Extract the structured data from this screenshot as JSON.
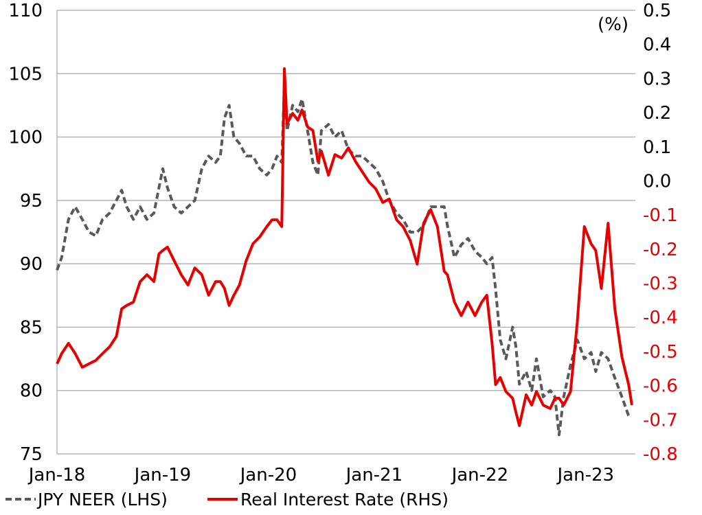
{
  "chart_data": {
    "type": "line",
    "title": "",
    "unit_label": "(%)",
    "grid": true,
    "legend_position": "bottom",
    "x_tick_labels": [
      "Jan-18",
      "Jan-19",
      "Jan-20",
      "Jan-21",
      "Jan-22",
      "Jan-23"
    ],
    "x_tick_dates": [
      "2018-01-01",
      "2019-01-01",
      "2020-01-01",
      "2021-01-01",
      "2022-01-01",
      "2023-01-01"
    ],
    "y_left": {
      "lim": [
        75,
        110
      ],
      "ticks": [
        110,
        105,
        100,
        95,
        90,
        85,
        80,
        75
      ]
    },
    "y_right": {
      "lim": [
        -0.8,
        0.5
      ],
      "ticks": [
        "0.5",
        "0.4",
        "0.3",
        "0.2",
        "0.1",
        "0.0",
        "-0.1",
        "-0.2",
        "-0.3",
        "-0.4",
        "-0.5",
        "-0.6",
        "-0.7",
        "-0.8"
      ]
    },
    "colors": {
      "neer": "#595959",
      "rate": "#e60000",
      "negative_tick": "#e60000",
      "grid": "#a6a6a6"
    },
    "x": [
      "2018-01-01",
      "2018-01-17",
      "2018-02-10",
      "2018-03-03",
      "2018-03-27",
      "2018-04-20",
      "2018-05-13",
      "2018-06-06",
      "2018-06-30",
      "2018-07-23",
      "2018-08-11",
      "2018-08-28",
      "2018-09-21",
      "2018-10-14",
      "2018-11-07",
      "2018-12-01",
      "2018-12-18",
      "2019-01-01",
      "2019-01-17",
      "2019-02-10",
      "2019-03-04",
      "2019-03-27",
      "2019-04-20",
      "2019-05-14",
      "2019-06-07",
      "2019-07-01",
      "2019-07-17",
      "2019-07-31",
      "2019-08-17",
      "2019-09-03",
      "2019-09-22",
      "2019-10-15",
      "2019-11-08",
      "2019-12-01",
      "2019-12-25",
      "2020-01-13",
      "2020-01-30",
      "2020-02-16",
      "2020-02-25",
      "2020-03-04",
      "2020-03-23",
      "2020-04-11",
      "2020-04-25",
      "2020-05-14",
      "2020-06-02",
      "2020-06-19",
      "2020-07-01",
      "2020-07-25",
      "2020-08-17",
      "2020-09-10",
      "2020-10-03",
      "2020-10-27",
      "2020-11-20",
      "2020-12-13",
      "2021-01-06",
      "2021-01-30",
      "2021-02-22",
      "2021-03-17",
      "2021-04-09",
      "2021-05-03",
      "2021-05-27",
      "2021-06-19",
      "2021-07-13",
      "2021-08-06",
      "2021-08-29",
      "2021-09-10",
      "2021-10-04",
      "2021-10-27",
      "2021-11-20",
      "2021-12-14",
      "2022-01-07",
      "2022-01-24",
      "2022-02-12",
      "2022-02-24",
      "2022-03-10",
      "2022-03-29",
      "2022-04-22",
      "2022-05-03",
      "2022-05-15",
      "2022-06-08",
      "2022-06-27",
      "2022-07-13",
      "2022-08-06",
      "2022-08-30",
      "2022-09-16",
      "2022-09-30",
      "2022-10-16",
      "2022-11-09",
      "2022-12-02",
      "2022-12-26",
      "2023-01-19",
      "2023-02-05",
      "2023-02-24",
      "2023-03-17",
      "2023-04-10",
      "2023-05-04",
      "2023-05-27",
      "2023-06-08"
    ],
    "series": [
      {
        "name": "JPY NEER (LHS)",
        "axis": "left",
        "style": "dashed",
        "values": [
          89.5,
          90.5,
          93.5,
          94.5,
          93.5,
          92.5,
          92.2,
          93.5,
          94,
          95,
          95.8,
          94.5,
          93.5,
          94.5,
          93.5,
          94,
          96,
          97.5,
          96,
          94.5,
          94,
          94.5,
          95,
          97.5,
          98.5,
          98,
          98.5,
          101.5,
          102.5,
          100,
          99.5,
          98.5,
          98.5,
          97.5,
          97,
          97.5,
          98.5,
          98,
          104,
          100.5,
          102.5,
          102,
          103,
          100.5,
          98,
          97,
          100.5,
          101,
          100,
          100.5,
          99,
          98.5,
          98.5,
          98,
          97.5,
          96.5,
          95,
          94,
          93.5,
          92.5,
          92.5,
          93,
          94.5,
          94.5,
          94.5,
          93,
          90.5,
          91.5,
          92,
          91,
          90.5,
          90,
          90.5,
          88,
          84,
          82.5,
          85,
          83.5,
          80.5,
          81.5,
          80,
          82.5,
          79.5,
          80,
          79.5,
          76.5,
          79.5,
          82,
          84,
          82.5,
          83,
          81.5,
          83,
          82.5,
          81,
          79.5,
          78,
          78
        ]
      },
      {
        "name": "Real Interest Rate (RHS)",
        "axis": "right",
        "style": "solid",
        "values": [
          -0.536,
          -0.506,
          -0.476,
          -0.506,
          -0.546,
          -0.536,
          -0.526,
          -0.506,
          -0.486,
          -0.456,
          -0.375,
          -0.365,
          -0.355,
          -0.295,
          -0.275,
          -0.295,
          -0.214,
          -0.204,
          -0.194,
          -0.234,
          -0.275,
          -0.305,
          -0.255,
          -0.275,
          -0.335,
          -0.295,
          -0.295,
          -0.315,
          -0.365,
          -0.335,
          -0.305,
          -0.234,
          -0.184,
          -0.164,
          -0.134,
          -0.114,
          -0.114,
          -0.134,
          0.329,
          0.168,
          0.198,
          0.178,
          0.208,
          0.158,
          0.148,
          0.057,
          0.087,
          0.017,
          0.077,
          0.067,
          0.097,
          0.057,
          0.027,
          -0.003,
          -0.023,
          -0.063,
          -0.053,
          -0.114,
          -0.134,
          -0.174,
          -0.244,
          -0.124,
          -0.084,
          -0.134,
          -0.265,
          -0.275,
          -0.355,
          -0.395,
          -0.355,
          -0.395,
          -0.355,
          -0.335,
          -0.476,
          -0.597,
          -0.576,
          -0.617,
          -0.637,
          -0.677,
          -0.717,
          -0.627,
          -0.657,
          -0.617,
          -0.657,
          -0.667,
          -0.637,
          -0.637,
          -0.657,
          -0.617,
          -0.415,
          -0.134,
          -0.184,
          -0.204,
          -0.315,
          -0.124,
          -0.375,
          -0.516,
          -0.597,
          -0.657
        ]
      }
    ]
  }
}
